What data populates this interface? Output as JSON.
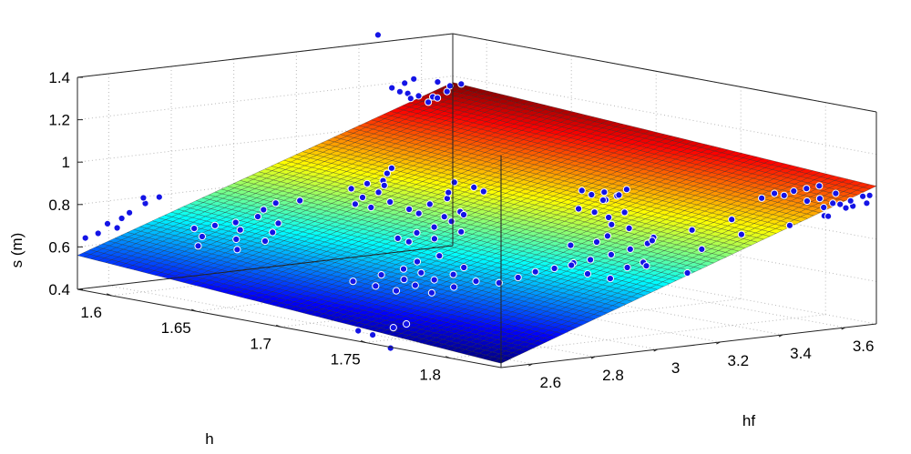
{
  "chart_data": {
    "type": "surface3d",
    "title": "",
    "zlabel": "s (m)",
    "xlabel": "h",
    "ylabel": "hf",
    "xlim": [
      1.58,
      1.83
    ],
    "ylim": [
      2.5,
      3.7
    ],
    "zlim": [
      0.4,
      1.4
    ],
    "grid": true,
    "z_ticks": [
      {
        "value": 0.4,
        "label": "0.4"
      },
      {
        "value": 0.6,
        "label": "0.6"
      },
      {
        "value": 0.8,
        "label": "0.8"
      },
      {
        "value": 1.0,
        "label": "1"
      },
      {
        "value": 1.2,
        "label": "1.2"
      },
      {
        "value": 1.4,
        "label": "1.4"
      }
    ],
    "x_ticks": [
      {
        "value": 1.6,
        "label": "1.6"
      },
      {
        "value": 1.65,
        "label": "1.65"
      },
      {
        "value": 1.7,
        "label": "1.7"
      },
      {
        "value": 1.75,
        "label": "1.75"
      },
      {
        "value": 1.8,
        "label": "1.8"
      }
    ],
    "y_ticks": [
      {
        "value": 2.6,
        "label": "2.6"
      },
      {
        "value": 2.8,
        "label": "2.8"
      },
      {
        "value": 3.0,
        "label": "3"
      },
      {
        "value": 3.2,
        "label": "3.2"
      },
      {
        "value": 3.4,
        "label": "3.4"
      },
      {
        "value": 3.6,
        "label": "3.6"
      }
    ],
    "surface": {
      "model": "plane",
      "corners": [
        {
          "h": 1.58,
          "hf": 2.5,
          "s": 0.56
        },
        {
          "h": 1.83,
          "hf": 2.5,
          "s": 0.42
        },
        {
          "h": 1.58,
          "hf": 3.7,
          "s": 1.17
        },
        {
          "h": 1.83,
          "hf": 3.7,
          "s": 1.05
        }
      ],
      "colormap": "jet",
      "grid_lines": 60
    },
    "points": [
      {
        "h": 1.581,
        "hf": 2.52,
        "s": 0.64
      },
      {
        "h": 1.583,
        "hf": 2.55,
        "s": 0.66
      },
      {
        "h": 1.585,
        "hf": 2.6,
        "s": 0.68
      },
      {
        "h": 1.583,
        "hf": 2.65,
        "s": 0.74
      },
      {
        "h": 1.585,
        "hf": 2.69,
        "s": 0.78
      },
      {
        "h": 1.582,
        "hf": 2.7,
        "s": 0.8
      },
      {
        "h": 1.584,
        "hf": 2.74,
        "s": 0.8
      },
      {
        "h": 1.583,
        "hf": 2.58,
        "s": 0.7
      },
      {
        "h": 1.584,
        "hf": 2.62,
        "s": 0.72
      },
      {
        "h": 1.582,
        "hf": 3.45,
        "s": 1.44
      },
      {
        "h": 1.581,
        "hf": 3.5,
        "s": 1.18
      },
      {
        "h": 1.582,
        "hf": 3.52,
        "s": 1.16
      },
      {
        "h": 1.583,
        "hf": 3.54,
        "s": 1.15
      },
      {
        "h": 1.581,
        "hf": 3.56,
        "s": 1.12
      },
      {
        "h": 1.582,
        "hf": 3.58,
        "s": 1.13
      },
      {
        "h": 1.584,
        "hf": 3.6,
        "s": 1.1
      },
      {
        "h": 1.583,
        "hf": 3.62,
        "s": 1.12
      },
      {
        "h": 1.582,
        "hf": 3.64,
        "s": 1.11
      },
      {
        "h": 1.584,
        "hf": 3.66,
        "s": 1.14
      },
      {
        "h": 1.582,
        "hf": 3.68,
        "s": 1.16
      },
      {
        "h": 1.585,
        "hf": 3.7,
        "s": 1.17
      },
      {
        "h": 1.583,
        "hf": 3.53,
        "s": 1.2
      },
      {
        "h": 1.581,
        "hf": 3.57,
        "s": 1.21
      },
      {
        "h": 1.584,
        "hf": 3.63,
        "s": 1.19
      },
      {
        "h": 1.612,
        "hf": 2.7,
        "s": 0.7
      },
      {
        "h": 1.615,
        "hf": 2.75,
        "s": 0.71
      },
      {
        "h": 1.618,
        "hf": 2.8,
        "s": 0.72
      },
      {
        "h": 1.62,
        "hf": 2.86,
        "s": 0.74
      },
      {
        "h": 1.616,
        "hf": 2.9,
        "s": 0.76
      },
      {
        "h": 1.614,
        "hf": 2.95,
        "s": 0.78
      },
      {
        "h": 1.619,
        "hf": 3.0,
        "s": 0.79
      },
      {
        "h": 1.613,
        "hf": 2.72,
        "s": 0.66
      },
      {
        "h": 1.617,
        "hf": 2.82,
        "s": 0.68
      },
      {
        "h": 1.621,
        "hf": 2.92,
        "s": 0.7
      },
      {
        "h": 1.622,
        "hf": 2.78,
        "s": 0.65
      },
      {
        "h": 1.618,
        "hf": 2.68,
        "s": 0.63
      },
      {
        "h": 1.625,
        "hf": 2.88,
        "s": 0.67
      },
      {
        "h": 1.63,
        "hf": 2.74,
        "s": 0.62
      },
      {
        "h": 1.628,
        "hf": 2.84,
        "s": 0.64
      },
      {
        "h": 1.653,
        "hf": 2.98,
        "s": 0.9
      },
      {
        "h": 1.655,
        "hf": 3.02,
        "s": 0.92
      },
      {
        "h": 1.657,
        "hf": 3.06,
        "s": 0.93
      },
      {
        "h": 1.652,
        "hf": 3.1,
        "s": 0.95
      },
      {
        "h": 1.656,
        "hf": 3.0,
        "s": 0.86
      },
      {
        "h": 1.658,
        "hf": 3.04,
        "s": 0.88
      },
      {
        "h": 1.654,
        "hf": 3.08,
        "s": 0.9
      },
      {
        "h": 1.659,
        "hf": 2.96,
        "s": 0.84
      },
      {
        "h": 1.651,
        "hf": 3.12,
        "s": 0.97
      },
      {
        "h": 1.661,
        "hf": 3.0,
        "s": 0.82
      },
      {
        "h": 1.663,
        "hf": 3.05,
        "s": 0.84
      },
      {
        "h": 1.665,
        "hf": 3.1,
        "s": 0.8
      },
      {
        "h": 1.667,
        "hf": 3.12,
        "s": 0.78
      },
      {
        "h": 1.668,
        "hf": 3.15,
        "s": 0.82
      },
      {
        "h": 1.669,
        "hf": 3.2,
        "s": 0.84
      },
      {
        "h": 1.666,
        "hf": 3.22,
        "s": 0.86
      },
      {
        "h": 1.664,
        "hf": 3.25,
        "s": 0.9
      },
      {
        "h": 1.67,
        "hf": 3.28,
        "s": 0.88
      },
      {
        "h": 1.672,
        "hf": 3.3,
        "s": 0.86
      },
      {
        "h": 1.671,
        "hf": 3.18,
        "s": 0.76
      },
      {
        "h": 1.673,
        "hf": 3.22,
        "s": 0.78
      },
      {
        "h": 1.686,
        "hf": 2.95,
        "s": 0.72
      },
      {
        "h": 1.688,
        "hf": 3.0,
        "s": 0.74
      },
      {
        "h": 1.689,
        "hf": 3.05,
        "s": 0.76
      },
      {
        "h": 1.69,
        "hf": 3.1,
        "s": 0.78
      },
      {
        "h": 1.688,
        "hf": 3.15,
        "s": 0.8
      },
      {
        "h": 1.687,
        "hf": 2.98,
        "s": 0.7
      },
      {
        "h": 1.691,
        "hf": 3.04,
        "s": 0.71
      },
      {
        "h": 1.692,
        "hf": 3.12,
        "s": 0.73
      },
      {
        "h": 1.702,
        "hf": 2.72,
        "s": 0.58
      },
      {
        "h": 1.704,
        "hf": 2.8,
        "s": 0.6
      },
      {
        "h": 1.706,
        "hf": 2.86,
        "s": 0.62
      },
      {
        "h": 1.703,
        "hf": 2.92,
        "s": 0.64
      },
      {
        "h": 1.705,
        "hf": 2.98,
        "s": 0.66
      },
      {
        "h": 1.708,
        "hf": 2.76,
        "s": 0.56
      },
      {
        "h": 1.71,
        "hf": 2.84,
        "s": 0.58
      },
      {
        "h": 1.709,
        "hf": 2.9,
        "s": 0.6
      },
      {
        "h": 1.722,
        "hf": 2.75,
        "s": 0.56
      },
      {
        "h": 1.724,
        "hf": 2.8,
        "s": 0.58
      },
      {
        "h": 1.726,
        "hf": 2.85,
        "s": 0.6
      },
      {
        "h": 1.728,
        "hf": 2.9,
        "s": 0.62
      },
      {
        "h": 1.725,
        "hf": 2.95,
        "s": 0.64
      },
      {
        "h": 1.73,
        "hf": 2.82,
        "s": 0.55
      },
      {
        "h": 1.732,
        "hf": 2.88,
        "s": 0.57
      },
      {
        "h": 1.734,
        "hf": 2.94,
        "s": 0.59
      },
      {
        "h": 1.742,
        "hf": 2.52,
        "s": 0.44
      },
      {
        "h": 1.745,
        "hf": 2.55,
        "s": 0.42
      },
      {
        "h": 1.748,
        "hf": 2.6,
        "s": 0.45
      },
      {
        "h": 1.75,
        "hf": 2.58,
        "s": 0.36
      },
      {
        "h": 1.752,
        "hf": 2.62,
        "s": 0.47
      },
      {
        "h": 1.755,
        "hf": 2.9,
        "s": 0.62
      },
      {
        "h": 1.757,
        "hf": 2.95,
        "s": 0.64
      },
      {
        "h": 1.758,
        "hf": 3.0,
        "s": 0.66
      },
      {
        "h": 1.76,
        "hf": 3.05,
        "s": 0.67
      },
      {
        "h": 1.762,
        "hf": 3.1,
        "s": 0.69
      },
      {
        "h": 1.765,
        "hf": 3.1,
        "s": 0.95
      },
      {
        "h": 1.767,
        "hf": 3.14,
        "s": 0.93
      },
      {
        "h": 1.768,
        "hf": 3.18,
        "s": 0.9
      },
      {
        "h": 1.77,
        "hf": 3.22,
        "s": 0.92
      },
      {
        "h": 1.766,
        "hf": 3.2,
        "s": 0.86
      },
      {
        "h": 1.769,
        "hf": 3.24,
        "s": 0.84
      },
      {
        "h": 1.771,
        "hf": 3.16,
        "s": 0.82
      },
      {
        "h": 1.772,
        "hf": 3.12,
        "s": 0.8
      },
      {
        "h": 1.764,
        "hf": 3.08,
        "s": 0.78
      },
      {
        "h": 1.77,
        "hf": 3.05,
        "s": 0.7
      },
      {
        "h": 1.772,
        "hf": 3.1,
        "s": 0.72
      },
      {
        "h": 1.775,
        "hf": 3.15,
        "s": 0.74
      },
      {
        "h": 1.777,
        "hf": 3.2,
        "s": 0.76
      },
      {
        "h": 1.778,
        "hf": 3.25,
        "s": 0.78
      },
      {
        "h": 1.776,
        "hf": 3.28,
        "s": 0.8
      },
      {
        "h": 1.779,
        "hf": 3.18,
        "s": 0.68
      },
      {
        "h": 1.781,
        "hf": 3.22,
        "s": 0.7
      },
      {
        "h": 1.774,
        "hf": 3.08,
        "s": 0.66
      },
      {
        "h": 1.78,
        "hf": 3.12,
        "s": 0.64
      },
      {
        "h": 1.73,
        "hf": 3.3,
        "s": 0.95
      },
      {
        "h": 1.732,
        "hf": 3.32,
        "s": 0.93
      },
      {
        "h": 1.734,
        "hf": 3.35,
        "s": 0.94
      },
      {
        "h": 1.736,
        "hf": 3.38,
        "s": 0.92
      },
      {
        "h": 1.738,
        "hf": 3.4,
        "s": 0.95
      },
      {
        "h": 1.733,
        "hf": 3.36,
        "s": 0.9
      },
      {
        "h": 1.737,
        "hf": 3.33,
        "s": 0.91
      },
      {
        "h": 1.739,
        "hf": 3.37,
        "s": 0.93
      },
      {
        "h": 1.79,
        "hf": 3.2,
        "s": 0.82
      },
      {
        "h": 1.795,
        "hf": 3.3,
        "s": 0.86
      },
      {
        "h": 1.8,
        "hf": 3.4,
        "s": 0.9
      },
      {
        "h": 1.805,
        "hf": 3.1,
        "s": 0.74
      },
      {
        "h": 1.81,
        "hf": 3.25,
        "s": 0.8
      },
      {
        "h": 1.815,
        "hf": 3.35,
        "s": 0.86
      },
      {
        "h": 1.82,
        "hf": 3.15,
        "s": 0.72
      },
      {
        "h": 1.825,
        "hf": 3.45,
        "s": 0.9
      },
      {
        "h": 1.79,
        "hf": 3.55,
        "s": 0.96
      },
      {
        "h": 1.792,
        "hf": 3.58,
        "s": 0.98
      },
      {
        "h": 1.794,
        "hf": 3.6,
        "s": 0.97
      },
      {
        "h": 1.796,
        "hf": 3.62,
        "s": 0.99
      },
      {
        "h": 1.798,
        "hf": 3.65,
        "s": 1.0
      },
      {
        "h": 1.8,
        "hf": 3.68,
        "s": 1.01
      },
      {
        "h": 1.802,
        "hf": 3.63,
        "s": 0.95
      },
      {
        "h": 1.804,
        "hf": 3.66,
        "s": 0.96
      },
      {
        "h": 1.806,
        "hf": 3.7,
        "s": 0.98
      },
      {
        "h": 1.808,
        "hf": 3.68,
        "s": 0.94
      },
      {
        "h": 1.81,
        "hf": 3.64,
        "s": 0.93
      },
      {
        "h": 1.812,
        "hf": 3.7,
        "s": 0.92
      },
      {
        "h": 1.814,
        "hf": 3.62,
        "s": 0.9
      },
      {
        "h": 1.816,
        "hf": 3.66,
        "s": 0.95
      },
      {
        "h": 1.818,
        "hf": 3.69,
        "s": 0.94
      },
      {
        "h": 1.82,
        "hf": 3.6,
        "s": 0.91
      },
      {
        "h": 1.822,
        "hf": 3.7,
        "s": 0.99
      },
      {
        "h": 1.824,
        "hf": 3.65,
        "s": 0.98
      },
      {
        "h": 1.826,
        "hf": 3.7,
        "s": 1.0
      },
      {
        "h": 1.828,
        "hf": 3.68,
        "s": 0.97
      }
    ]
  }
}
